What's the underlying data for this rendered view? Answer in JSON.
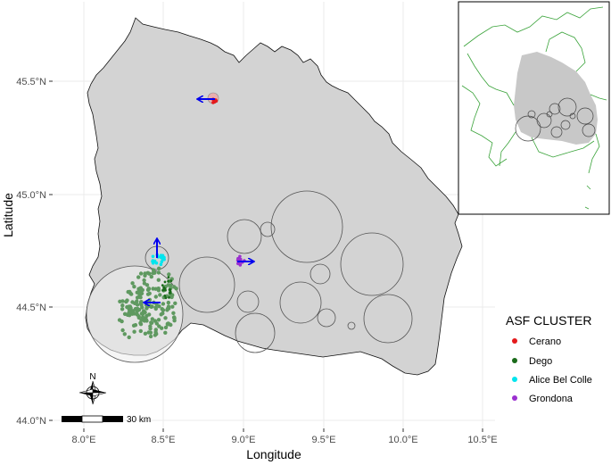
{
  "axes": {
    "xlabel": "Longitude",
    "ylabel": "Latitude",
    "x_ticks": [
      "8.0°E",
      "8.5°E",
      "9.0°E",
      "9.5°E",
      "10.0°E",
      "10.5°E"
    ],
    "y_ticks": [
      "44.0°N",
      "44.5°N",
      "45.0°N",
      "45.5°N"
    ],
    "xlim": [
      7.85,
      10.55
    ],
    "ylim": [
      43.98,
      45.72
    ]
  },
  "legend": {
    "title": "ASF CLUSTER",
    "items": [
      {
        "label": "Cerano",
        "color": "#e41a1c"
      },
      {
        "label": "Dego",
        "color": "#1a6b1a"
      },
      {
        "label": "Alice Bel Colle",
        "color": "#00e5ee"
      },
      {
        "label": "Grondona",
        "color": "#9b30d0"
      }
    ]
  },
  "scale_bar": {
    "label": "30 km"
  },
  "north_arrow": {
    "label": "N"
  },
  "colors": {
    "region_fill": "#d3d3d3",
    "region_stroke": "#000000",
    "arrow": "#0000ee",
    "dego_points": "#5f9960",
    "inset_border": "#3aa33a"
  },
  "clusters": [
    {
      "name": "Cerano",
      "lon": 8.83,
      "lat": 45.42,
      "arrow_dir": "west"
    },
    {
      "name": "Grondona",
      "lon": 9.0,
      "lat": 44.7,
      "arrow_dir": "east"
    },
    {
      "name": "Alice Bel Colle",
      "lon": 8.46,
      "lat": 44.72,
      "arrow_dir": "north"
    },
    {
      "name": "Dego",
      "lon": 8.38,
      "lat": 44.52,
      "arrow_dir": "west"
    }
  ]
}
